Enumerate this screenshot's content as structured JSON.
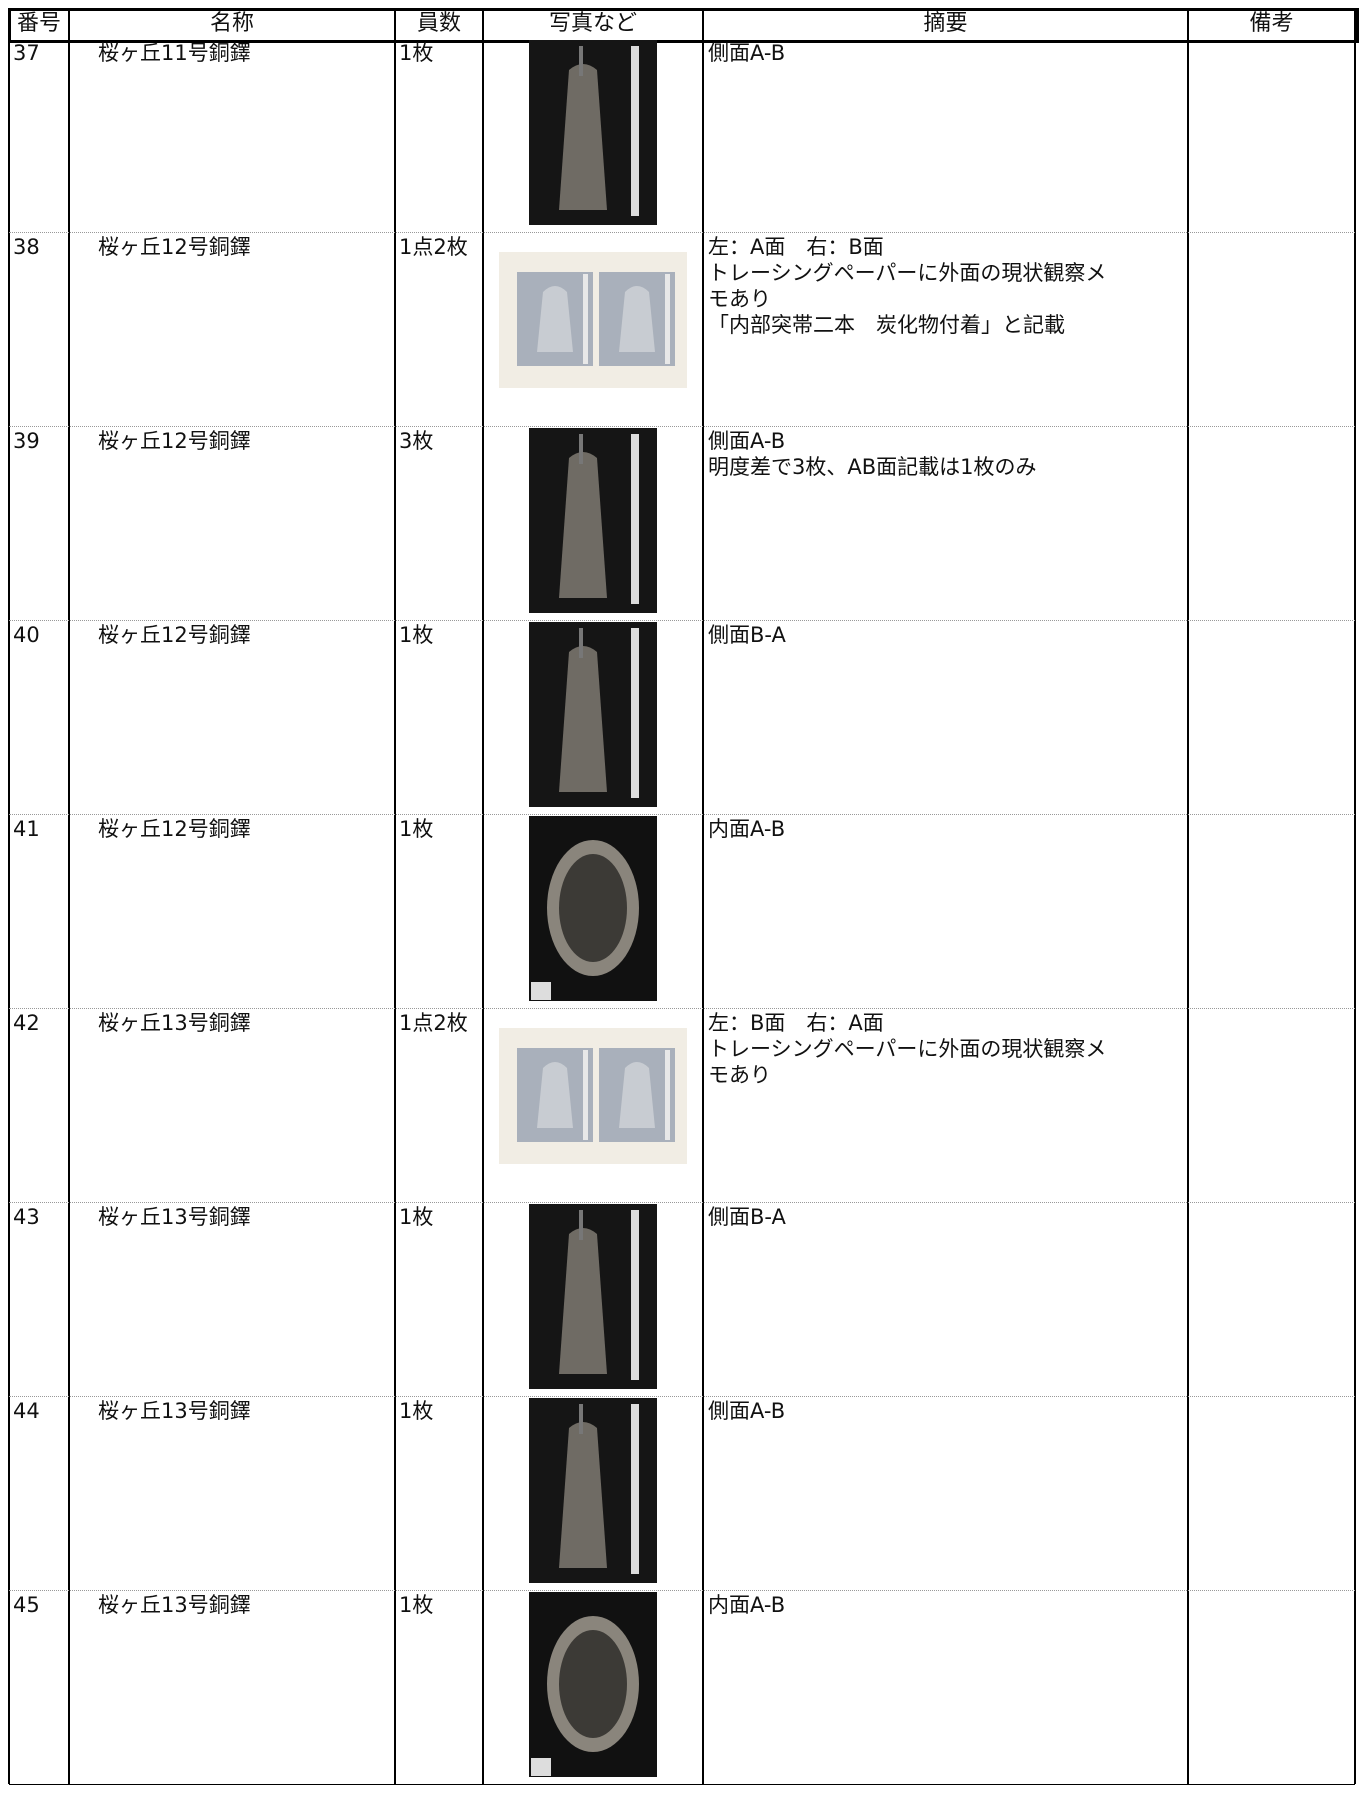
{
  "table": {
    "header": [
      "番号",
      "名称",
      "員数",
      "写真など",
      "摘要",
      "備考"
    ],
    "rows": [
      {
        "no": "37",
        "name": "桜ヶ丘11号銅鐸",
        "count": "1枚",
        "summary": [
          "側面A-B"
        ]
      },
      {
        "no": "38",
        "name": "桜ヶ丘12号銅鐸",
        "count": "1点2枚",
        "summary": [
          "左：A面　右：B面",
          "トレーシングペーパーに外面の現状観察メ",
          "モあり",
          "「内部突帯二本　炭化物付着」と記載"
        ]
      },
      {
        "no": "39",
        "name": "桜ヶ丘12号銅鐸",
        "count": "3枚",
        "summary": [
          "側面A-B",
          "明度差で3枚、AB面記載は1枚のみ"
        ]
      },
      {
        "no": "40",
        "name": "桜ヶ丘12号銅鐸",
        "count": "1枚",
        "summary": [
          "側面B-A"
        ]
      },
      {
        "no": "41",
        "name": "桜ヶ丘12号銅鐸",
        "count": "1枚",
        "summary": [
          "内面A-B"
        ]
      },
      {
        "no": "42",
        "name": "桜ヶ丘13号銅鐸",
        "count": "1点2枚",
        "summary": [
          "左：B面　右：A面",
          "トレーシングペーパーに外面の現状観察メ",
          "モあり"
        ]
      },
      {
        "no": "43",
        "name": "桜ヶ丘13号銅鐸",
        "count": "1枚",
        "summary": [
          "側面B-A"
        ]
      },
      {
        "no": "44",
        "name": "桜ヶ丘13号銅鐸",
        "count": "1枚",
        "summary": [
          "側面A-B"
        ]
      },
      {
        "no": "45",
        "name": "桜ヶ丘13号銅鐸",
        "count": "1枚",
        "summary": [
          "内面A-B"
        ]
      }
    ]
  }
}
